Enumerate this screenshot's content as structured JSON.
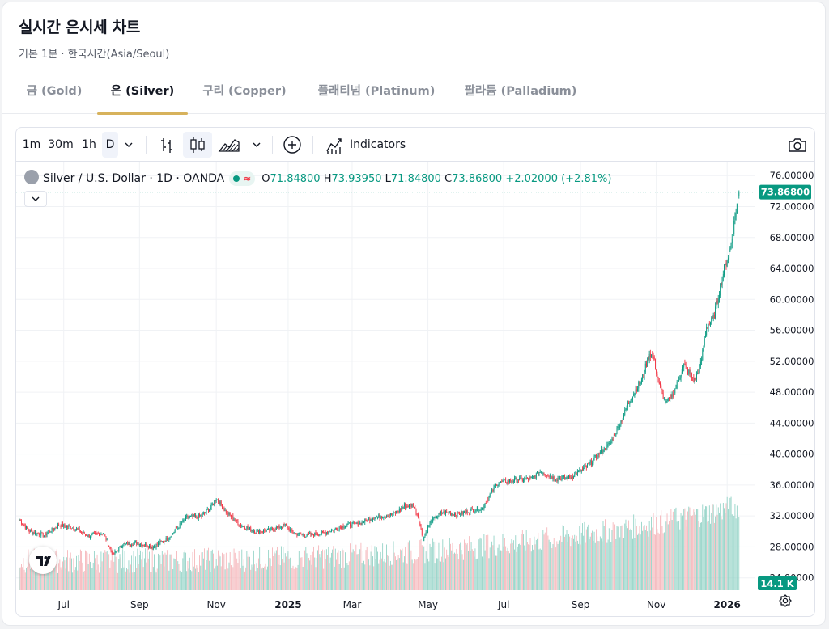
{
  "page": {
    "title": "실시간 은시세 차트",
    "subtitle": "기본 1분 · 한국시간(Asia/Seoul)"
  },
  "tabs": [
    {
      "label": "금 (Gold)",
      "active": false
    },
    {
      "label": "은 (Silver)",
      "active": true
    },
    {
      "label": "구리 (Copper)",
      "active": false
    },
    {
      "label": "플래티넘 (Platinum)",
      "active": false
    },
    {
      "label": "팔라듐 (Palladium)",
      "active": false
    }
  ],
  "toolbar": {
    "intervals": [
      "1m",
      "30m",
      "1h",
      "D"
    ],
    "active_interval": "D",
    "indicators_label": "Indicators",
    "icons": [
      "chevron-down-icon",
      "bar-chart-icon",
      "candlestick-icon",
      "area-chart-icon",
      "chevron-down-icon",
      "add-circle-icon",
      "indicators-icon",
      "camera-icon"
    ]
  },
  "legend": {
    "symbol": "Silver / U.S. Dollar · 1D · OANDA",
    "live_wave": "≈",
    "open_key": "O",
    "open": "71.84800",
    "high_key": "H",
    "high": "73.93950",
    "low_key": "L",
    "low": "71.84800",
    "close_key": "C",
    "close": "73.86800",
    "change": "+2.02000 (+2.81%)"
  },
  "colors": {
    "up": "#089981",
    "down": "#f23645",
    "volume_up": "#8fd1c4",
    "volume_down": "#f5b4b8",
    "accent_tab": "#d7b25c",
    "grid": "#f0f2f5"
  },
  "chart_data": {
    "type": "candlestick",
    "symbol": "Silver / U.S. Dollar",
    "interval": "1D",
    "source": "OANDA",
    "y_ticks": [
      "76.00000",
      "72.00000",
      "68.00000",
      "64.00000",
      "60.00000",
      "56.00000",
      "52.00000",
      "48.00000",
      "44.00000",
      "40.00000",
      "36.00000",
      "32.00000",
      "28.00000",
      "24.00000"
    ],
    "ylim": [
      22.4,
      77.8
    ],
    "x_ticks": [
      "Jul",
      "Sep",
      "Nov",
      "2025",
      "Mar",
      "May",
      "Jul",
      "Sep",
      "Nov",
      "2026"
    ],
    "x_tick_index": [
      45,
      122,
      200,
      273,
      338,
      415,
      492,
      570,
      647,
      719
    ],
    "last_price": "73.86800",
    "last_price_value": 73.868,
    "volume_label": "14.1 K",
    "price_path": [
      [
        0,
        31.5
      ],
      [
        10,
        30.0
      ],
      [
        25,
        29.5
      ],
      [
        40,
        30.8
      ],
      [
        55,
        30.5
      ],
      [
        70,
        29.4
      ],
      [
        85,
        29.8
      ],
      [
        95,
        27.0
      ],
      [
        105,
        28.3
      ],
      [
        120,
        28.5
      ],
      [
        135,
        28.0
      ],
      [
        150,
        29.0
      ],
      [
        170,
        31.8
      ],
      [
        185,
        32.0
      ],
      [
        195,
        33.2
      ],
      [
        200,
        34.3
      ],
      [
        210,
        32.5
      ],
      [
        225,
        30.8
      ],
      [
        240,
        30.0
      ],
      [
        255,
        30.2
      ],
      [
        270,
        30.8
      ],
      [
        278,
        29.8
      ],
      [
        290,
        29.5
      ],
      [
        310,
        29.8
      ],
      [
        330,
        30.8
      ],
      [
        345,
        31.0
      ],
      [
        360,
        31.8
      ],
      [
        380,
        32.2
      ],
      [
        390,
        33.2
      ],
      [
        400,
        33.4
      ],
      [
        405,
        32.0
      ],
      [
        410,
        29.0
      ],
      [
        418,
        31.3
      ],
      [
        430,
        32.5
      ],
      [
        445,
        32.2
      ],
      [
        460,
        32.8
      ],
      [
        470,
        33.0
      ],
      [
        485,
        36.2
      ],
      [
        500,
        36.6
      ],
      [
        520,
        36.8
      ],
      [
        530,
        37.8
      ],
      [
        545,
        36.8
      ],
      [
        560,
        37.0
      ],
      [
        575,
        38.2
      ],
      [
        590,
        40.2
      ],
      [
        600,
        41.3
      ],
      [
        612,
        44.5
      ],
      [
        622,
        47.5
      ],
      [
        632,
        49.5
      ],
      [
        640,
        53.0
      ],
      [
        644,
        52.5
      ],
      [
        650,
        48.8
      ],
      [
        657,
        46.5
      ],
      [
        665,
        48.0
      ],
      [
        675,
        51.5
      ],
      [
        680,
        50.5
      ],
      [
        686,
        49.5
      ],
      [
        692,
        51.5
      ],
      [
        698,
        56.5
      ],
      [
        705,
        57.5
      ],
      [
        715,
        63.5
      ],
      [
        722,
        66.5
      ],
      [
        728,
        71.5
      ],
      [
        731,
        73.87
      ]
    ],
    "volume_range": [
      4000,
      36000
    ]
  }
}
